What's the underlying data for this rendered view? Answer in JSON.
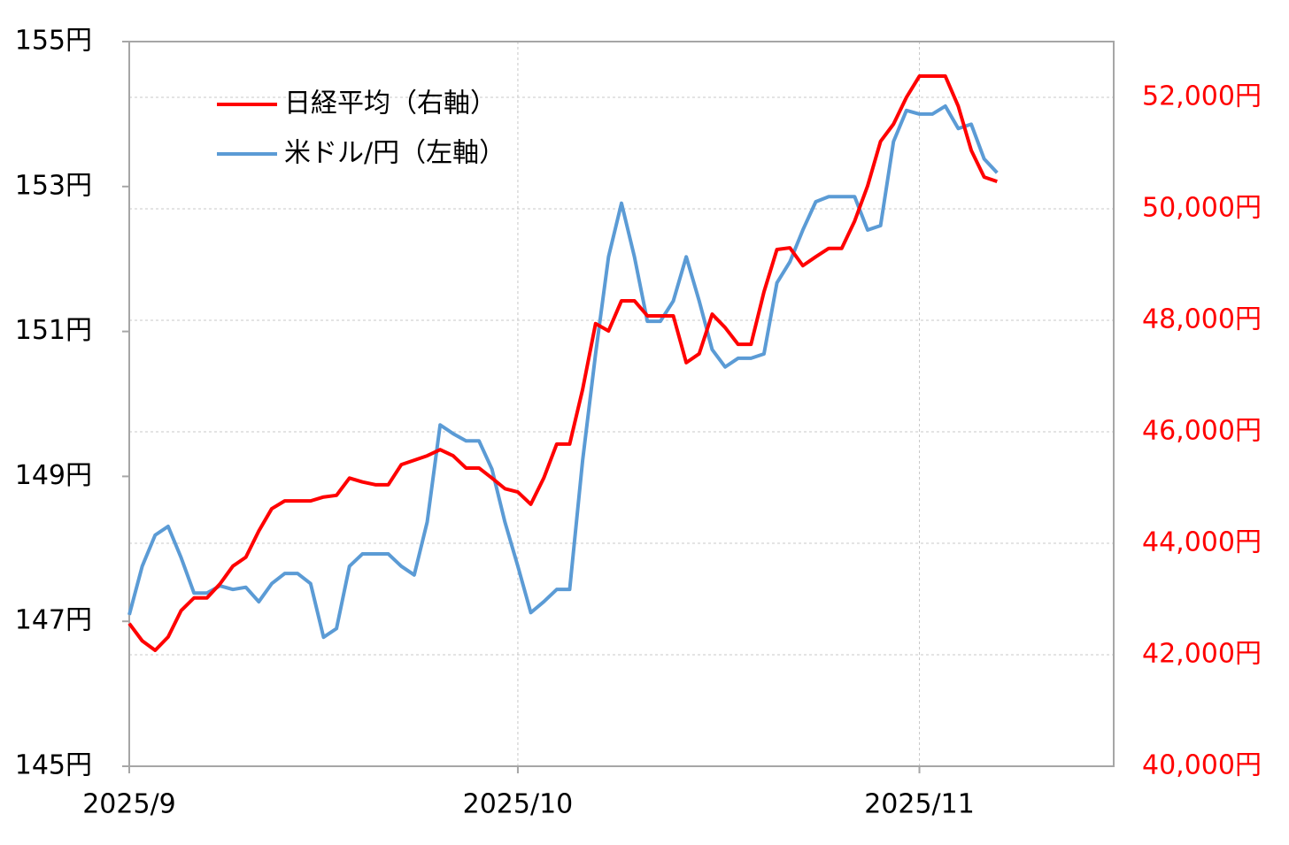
{
  "chart_data": {
    "type": "line",
    "x": [
      0,
      1,
      2,
      3,
      4,
      5,
      6,
      7,
      8,
      9,
      10,
      11,
      12,
      13,
      14,
      15,
      16,
      17,
      18,
      19,
      20,
      21,
      22,
      23,
      24,
      25,
      26,
      27,
      28,
      29,
      30,
      31,
      32,
      33,
      34,
      35,
      36,
      37,
      38,
      39,
      40,
      41,
      42,
      43,
      44,
      45,
      46,
      47,
      48,
      49,
      50,
      51,
      52,
      53,
      54,
      55,
      56,
      57,
      58,
      59,
      60,
      61,
      62,
      63,
      64,
      65,
      66,
      67
    ],
    "xlim": [
      0,
      76
    ],
    "xticks": [
      {
        "value": 0,
        "label": "2025/9"
      },
      {
        "value": 30,
        "label": "2025/10"
      },
      {
        "value": 61,
        "label": "2025/11"
      }
    ],
    "ylim": [
      145,
      155
    ],
    "yticks": [
      {
        "value": 145,
        "label": "145円"
      },
      {
        "value": 147,
        "label": "147円"
      },
      {
        "value": 149,
        "label": "149円"
      },
      {
        "value": 151,
        "label": "151円"
      },
      {
        "value": 153,
        "label": "153円"
      },
      {
        "value": 155,
        "label": "155円"
      }
    ],
    "y2lim": [
      40000,
      53000
    ],
    "y2ticks": [
      {
        "value": 40000,
        "label": "40,000円"
      },
      {
        "value": 42000,
        "label": "42,000円"
      },
      {
        "value": 44000,
        "label": "44,000円"
      },
      {
        "value": 46000,
        "label": "46,000円"
      },
      {
        "value": 48000,
        "label": "48,000円"
      },
      {
        "value": 50000,
        "label": "50,000円"
      },
      {
        "value": 52000,
        "label": "52,000円"
      }
    ],
    "grid": true,
    "legend": "top-left",
    "series": [
      {
        "name": "日経平均（右軸）",
        "color": "#ff0000",
        "axis": "y2",
        "values": [
          42560,
          42250,
          42080,
          42320,
          42790,
          43020,
          43020,
          43270,
          43590,
          43750,
          44220,
          44620,
          44760,
          44760,
          44760,
          44830,
          44860,
          45170,
          45100,
          45050,
          45050,
          45410,
          45490,
          45570,
          45680,
          45570,
          45350,
          45350,
          45170,
          44980,
          44920,
          44700,
          45170,
          45780,
          45780,
          46760,
          47940,
          47810,
          48350,
          48350,
          48080,
          48080,
          48080,
          47240,
          47400,
          48110,
          47870,
          47570,
          47570,
          48510,
          49270,
          49300,
          48980,
          49140,
          49290,
          49290,
          49780,
          50410,
          51210,
          51520,
          52000,
          52380,
          52380,
          52380,
          51840,
          51050,
          50570,
          50490
        ]
      },
      {
        "name": "米ドル/円（左軸）",
        "color": "#5b9bd5",
        "values": [
          147.09,
          147.76,
          148.19,
          148.31,
          147.88,
          147.39,
          147.39,
          147.49,
          147.44,
          147.47,
          147.27,
          147.52,
          147.66,
          147.66,
          147.52,
          146.78,
          146.9,
          147.76,
          147.93,
          147.93,
          147.93,
          147.76,
          147.64,
          148.37,
          149.71,
          149.59,
          149.49,
          149.49,
          149.1,
          148.37,
          147.76,
          147.12,
          147.27,
          147.44,
          147.44,
          149.22,
          150.69,
          152.03,
          152.77,
          152.03,
          151.14,
          151.14,
          151.42,
          152.03,
          151.42,
          150.75,
          150.51,
          150.63,
          150.63,
          150.69,
          151.67,
          151.96,
          152.4,
          152.79,
          152.86,
          152.86,
          152.86,
          152.4,
          152.46,
          153.62,
          154.05,
          154.0,
          154.0,
          154.11,
          153.8,
          153.86,
          153.38,
          153.19
        ]
      }
    ]
  }
}
